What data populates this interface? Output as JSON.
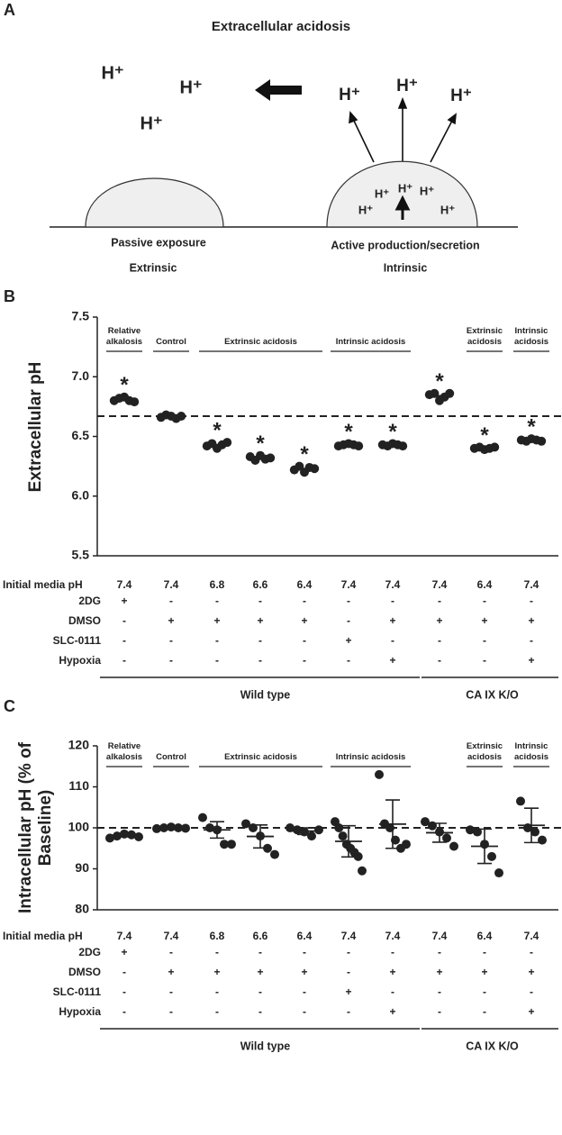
{
  "panel_a": {
    "label": "A",
    "title": "Extracellular acidosis",
    "ions_free": [
      "H⁺",
      "H⁺",
      "H⁺"
    ],
    "ions_secreted": [
      "H⁺",
      "H⁺",
      "H⁺"
    ],
    "ions_cell": [
      "H⁺",
      "H⁺",
      "H⁺",
      "H⁺",
      "H⁺"
    ],
    "left_cell": {
      "caption": "Passive exposure",
      "type_label": "Extrinsic"
    },
    "right_cell": {
      "caption": "Active production/secretion",
      "type_label": "Intrinsic"
    }
  },
  "chart_data": [
    {
      "type": "dot",
      "panel_label": "B",
      "y_label": "Extracellular pH",
      "color": "#222222",
      "ylim": [
        5.5,
        7.5
      ],
      "yticks": [
        5.5,
        {
          "value": 6,
          "label": "6.0"
        },
        6.5,
        {
          "value": 7,
          "label": "7.0"
        },
        7.5
      ],
      "reference_line": 6.67,
      "headers": [
        {
          "text": "Relative alkalosis",
          "span": [
            0,
            0
          ]
        },
        {
          "text": "Control",
          "span": [
            1,
            1
          ]
        },
        {
          "text": "Extrinsic acidosis",
          "span": [
            2,
            4
          ]
        },
        {
          "text": "Intrinsic acidosis",
          "span": [
            5,
            6
          ]
        },
        {
          "text": "Extrinsic acidosis",
          "span": [
            8,
            8
          ]
        },
        {
          "text": "Intrinsic acidosis",
          "span": [
            9,
            9
          ]
        }
      ],
      "points": [
        [
          6.8,
          6.82,
          6.83,
          6.8,
          6.79
        ],
        [
          6.66,
          6.68,
          6.67,
          6.65,
          6.67
        ],
        [
          6.42,
          6.44,
          6.4,
          6.43,
          6.45
        ],
        [
          6.33,
          6.3,
          6.34,
          6.31,
          6.32
        ],
        [
          6.22,
          6.25,
          6.2,
          6.24,
          6.23
        ],
        [
          6.42,
          6.43,
          6.44,
          6.43,
          6.42
        ],
        [
          6.43,
          6.42,
          6.44,
          6.43,
          6.42
        ],
        [
          6.85,
          6.86,
          6.8,
          6.83,
          6.86
        ],
        [
          6.4,
          6.41,
          6.39,
          6.4,
          6.41
        ],
        [
          6.47,
          6.46,
          6.48,
          6.47,
          6.46
        ]
      ],
      "means": [
        6.81,
        6.67,
        6.43,
        6.32,
        6.23,
        6.43,
        6.43,
        6.84,
        6.4,
        6.47
      ],
      "significance": [
        "*",
        null,
        "*",
        "*",
        "*",
        "*",
        "*",
        "*",
        "*",
        "*"
      ],
      "conditions": [
        {
          "label": "Initial media pH",
          "values": [
            7.4,
            7.4,
            6.8,
            6.6,
            6.4,
            7.4,
            7.4,
            7.4,
            6.4,
            7.4
          ]
        },
        {
          "label": "2DG",
          "values": [
            "+",
            "-",
            "-",
            "-",
            "-",
            "-",
            "-",
            "-",
            "-",
            "-"
          ]
        },
        {
          "label": "DMSO",
          "values": [
            "-",
            "+",
            "+",
            "+",
            "+",
            "-",
            "+",
            "+",
            "+",
            "+"
          ]
        },
        {
          "label": "SLC-0111",
          "values": [
            "-",
            "-",
            "-",
            "-",
            "-",
            "+",
            "-",
            "-",
            "-",
            "-"
          ]
        },
        {
          "label": "Hypoxia",
          "values": [
            "-",
            "-",
            "-",
            "-",
            "-",
            "-",
            "+",
            "-",
            "-",
            "+"
          ]
        }
      ],
      "genotypes": [
        {
          "label": "Wild type",
          "span": [
            0,
            6
          ]
        },
        {
          "label": "CA IX K/O",
          "span": [
            7,
            9
          ]
        }
      ]
    },
    {
      "type": "dot",
      "panel_label": "C",
      "y_label": "Intracellular pH (% of Baseline)",
      "color": "#222222",
      "ylim": [
        80,
        120
      ],
      "yticks": [
        80,
        90,
        100,
        110,
        120
      ],
      "reference_line": 100,
      "headers": [
        {
          "text": "Relative alkalosis",
          "span": [
            0,
            0
          ]
        },
        {
          "text": "Control",
          "span": [
            1,
            1
          ]
        },
        {
          "text": "Extrinsic acidosis",
          "span": [
            2,
            4
          ]
        },
        {
          "text": "Intrinsic acidosis",
          "span": [
            5,
            6
          ]
        },
        {
          "text": "Extrinsic acidosis",
          "span": [
            8,
            8
          ]
        },
        {
          "text": "Intrinsic acidosis",
          "span": [
            9,
            9
          ]
        }
      ],
      "points": [
        [
          97.5,
          98,
          98.5,
          98.3,
          97.8
        ],
        [
          99.8,
          100,
          100.2,
          100,
          99.9
        ],
        [
          102.5,
          100,
          99.5,
          96,
          96
        ],
        [
          101,
          100,
          98,
          95,
          93.5
        ],
        [
          100,
          99.5,
          99,
          98,
          99.5
        ],
        [
          101.5,
          100,
          98,
          96,
          95,
          94,
          93,
          89.5
        ],
        [
          113,
          101,
          100,
          97,
          95,
          96
        ],
        [
          101.5,
          100.5,
          99,
          97.5,
          95.5
        ],
        [
          99.5,
          99,
          96,
          93,
          89
        ],
        [
          106.5,
          100,
          99,
          97
        ]
      ],
      "means": [
        98.2,
        100,
        99.5,
        97.9,
        99.2,
        96.7,
        100.9,
        98.8,
        95.5,
        100.6
      ],
      "sd": [
        0.4,
        0.2,
        2.0,
        2.8,
        0.8,
        3.8,
        5.9,
        2.3,
        4.2,
        4.2
      ],
      "conditions": [
        {
          "label": "Initial media pH",
          "values": [
            7.4,
            7.4,
            6.8,
            6.6,
            6.4,
            7.4,
            7.4,
            7.4,
            6.4,
            7.4
          ]
        },
        {
          "label": "2DG",
          "values": [
            "+",
            "-",
            "-",
            "-",
            "-",
            "-",
            "-",
            "-",
            "-",
            "-"
          ]
        },
        {
          "label": "DMSO",
          "values": [
            "-",
            "+",
            "+",
            "+",
            "+",
            "-",
            "+",
            "+",
            "+",
            "+"
          ]
        },
        {
          "label": "SLC-0111",
          "values": [
            "-",
            "-",
            "-",
            "-",
            "-",
            "+",
            "-",
            "-",
            "-",
            "-"
          ]
        },
        {
          "label": "Hypoxia",
          "values": [
            "-",
            "-",
            "-",
            "-",
            "-",
            "-",
            "+",
            "-",
            "-",
            "+"
          ]
        }
      ],
      "genotypes": [
        {
          "label": "Wild type",
          "span": [
            0,
            6
          ]
        },
        {
          "label": "CA IX K/O",
          "span": [
            7,
            9
          ]
        }
      ]
    }
  ]
}
